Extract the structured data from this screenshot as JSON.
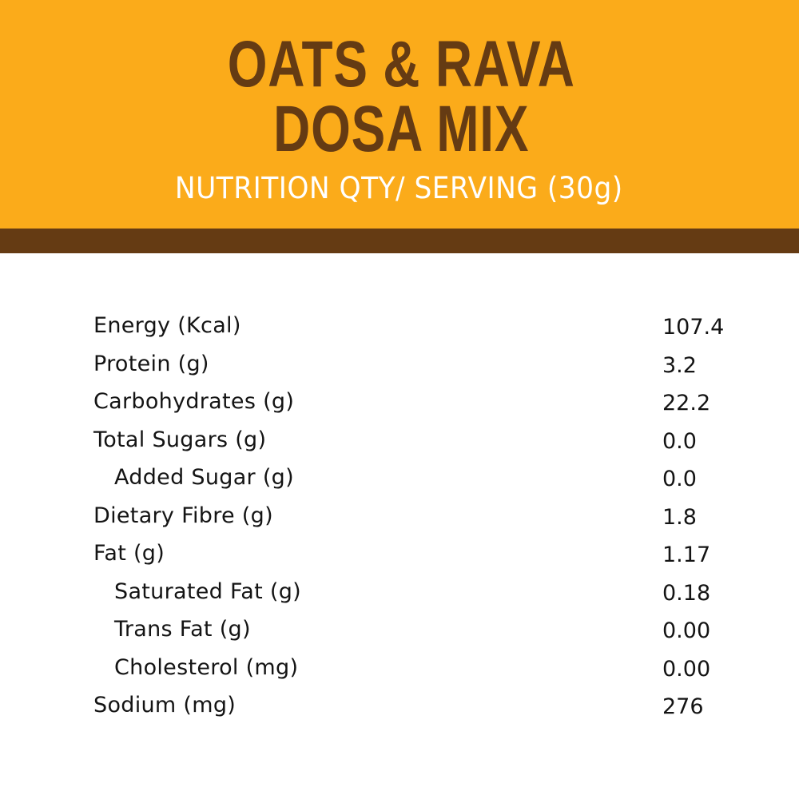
{
  "header": {
    "title_line1": "OATS & RAVA",
    "title_line2": "DOSA MIX",
    "subtitle": "NUTRITION QTY/ SERVING (30g)"
  },
  "colors": {
    "header_background": "#fbab1a",
    "title_text": "#653b13",
    "band": "#653b13",
    "body_text": "#141414"
  },
  "nutrients": [
    {
      "label": "Energy (Kcal)",
      "value": "107.4"
    },
    {
      "label": "Protein (g)",
      "value": "3.2"
    },
    {
      "label": "Carbohydrates (g)",
      "value": "22.2"
    },
    {
      "label": "Total Sugars (g)",
      "value": "0.0"
    },
    {
      "label": "Added Sugar (g)",
      "value": "0.0"
    },
    {
      "label": "Dietary Fibre (g)",
      "value": "1.8"
    },
    {
      "label": "Fat (g)",
      "value": "1.17"
    },
    {
      "label": "Saturated Fat (g)",
      "value": "0.18"
    },
    {
      "label": "Trans Fat (g)",
      "value": "0.00"
    },
    {
      "label": "Cholesterol (mg)",
      "value": "0.00"
    },
    {
      "label": "Sodium (mg)",
      "value": "276"
    }
  ]
}
